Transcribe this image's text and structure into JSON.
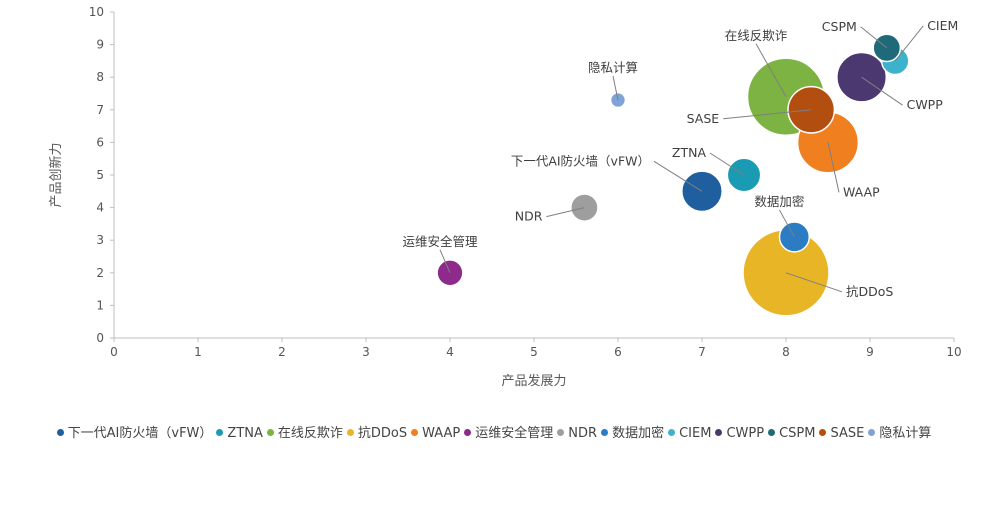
{
  "chart_data": {
    "type": "bubble",
    "xlabel": "产品发展力",
    "ylabel": "产品创新力",
    "xlim": [
      0,
      10
    ],
    "ylim": [
      0,
      10
    ],
    "xticks": [
      0,
      1,
      2,
      3,
      4,
      5,
      6,
      7,
      8,
      9,
      10
    ],
    "yticks": [
      0,
      1,
      2,
      3,
      4,
      5,
      6,
      7,
      8,
      9,
      10
    ],
    "grid": false,
    "legend_position": "bottom",
    "series": [
      {
        "name": "下一代AI防火墙（vFW）",
        "label": "下一代AI防火墙（vFW）",
        "color": "#1f5fa0",
        "x": 7.0,
        "y": 4.5,
        "size": 2.2
      },
      {
        "name": "ZTNA",
        "label": "ZTNA",
        "color": "#1b9bb3",
        "x": 7.5,
        "y": 5.0,
        "size": 1.5
      },
      {
        "name": "在线反欺诈",
        "label": "在线反欺诈",
        "color": "#7cb342",
        "x": 8.0,
        "y": 7.4,
        "size": 8.0
      },
      {
        "name": "抗DDoS",
        "label": "抗DDoS",
        "color": "#e8b526",
        "x": 8.0,
        "y": 2.0,
        "size": 10.0
      },
      {
        "name": "WAAP",
        "label": "WAAP",
        "color": "#f07f1f",
        "x": 8.5,
        "y": 6.0,
        "size": 5.0
      },
      {
        "name": "运维安全管理",
        "label": "运维安全管理",
        "color": "#8e2a8b",
        "x": 4.0,
        "y": 2.0,
        "size": 0.9
      },
      {
        "name": "NDR",
        "label": "NDR",
        "color": "#9e9e9e",
        "x": 5.6,
        "y": 4.0,
        "size": 1.0
      },
      {
        "name": "数据加密",
        "label": "数据加密",
        "color": "#2b7cc2",
        "x": 8.1,
        "y": 3.1,
        "size": 1.2
      },
      {
        "name": "CIEM",
        "label": "CIEM",
        "color": "#3cb2cc",
        "x": 9.3,
        "y": 8.5,
        "size": 1.0
      },
      {
        "name": "CWPP",
        "label": "CWPP",
        "color": "#4b3870",
        "x": 8.9,
        "y": 8.0,
        "size": 3.3
      },
      {
        "name": "CSPM",
        "label": "CSPM",
        "color": "#1f6a78",
        "x": 9.2,
        "y": 8.9,
        "size": 1.0
      },
      {
        "name": "SASE",
        "label": "SASE",
        "color": "#b24e10",
        "x": 8.3,
        "y": 7.0,
        "size": 2.9
      },
      {
        "name": "隐私计算",
        "label": "隐私计算",
        "color": "#7fa3d6",
        "x": 6.0,
        "y": 7.3,
        "size": 0.3
      }
    ]
  }
}
